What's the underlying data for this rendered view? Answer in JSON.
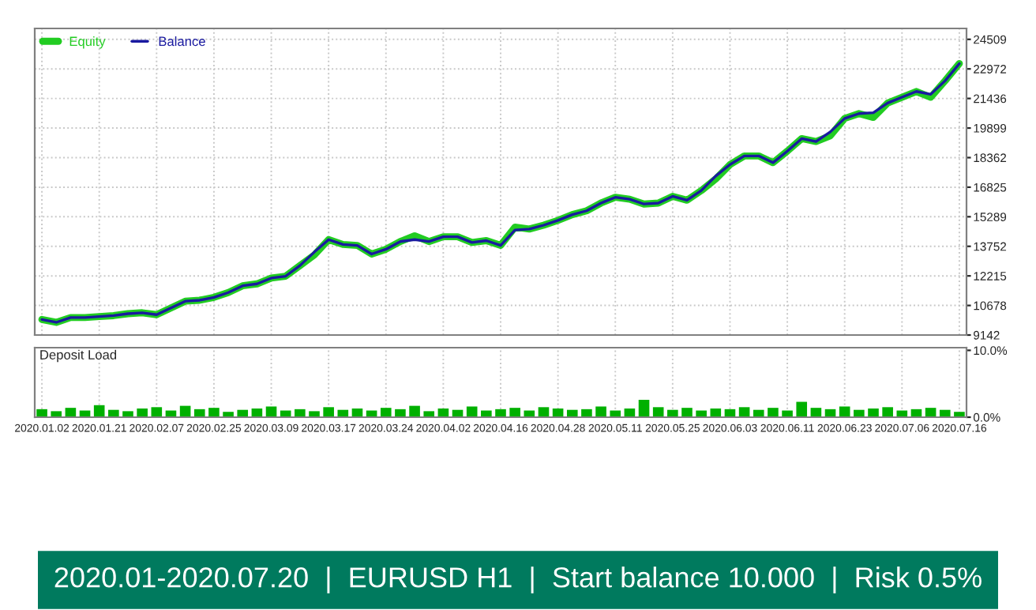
{
  "chart_data": [
    {
      "type": "line",
      "legend": "top left",
      "grid": true,
      "tick_labels": "y",
      "marker": "none",
      "line_style": "solid",
      "categories": [
        "2020.01.02",
        null,
        null,
        null,
        "2020.01.21",
        null,
        null,
        null,
        "2020.02.07",
        null,
        null,
        null,
        "2020.02.25",
        null,
        null,
        null,
        "2020.03.09",
        null,
        null,
        null,
        "2020.03.17",
        null,
        null,
        null,
        "2020.03.24",
        null,
        null,
        null,
        "2020.04.02",
        null,
        null,
        null,
        "2020.04.16",
        null,
        null,
        null,
        "2020.04.28",
        null,
        null,
        null,
        "2020.05.11",
        null,
        null,
        null,
        "2020.05.25",
        null,
        null,
        null,
        "2020.06.03",
        null,
        null,
        null,
        "2020.06.11",
        null,
        null,
        null,
        "2020.06.23",
        null,
        null,
        null,
        "2020.07.06",
        null,
        null,
        null,
        "2020.07.16"
      ],
      "series": [
        {
          "name": "Equity",
          "color": "#22cc22",
          "values": [
            9950,
            9800,
            10050,
            10050,
            10100,
            10150,
            10250,
            10300,
            10200,
            10550,
            10900,
            10950,
            11100,
            11350,
            11700,
            11800,
            12100,
            12200,
            12750,
            13300,
            14100,
            13850,
            13800,
            13350,
            13600,
            14000,
            14300,
            14000,
            14250,
            14250,
            13950,
            14050,
            13800,
            14750,
            14650,
            14850,
            15100,
            15400,
            15600,
            16000,
            16300,
            16200,
            15950,
            16000,
            16350,
            16150,
            16650,
            17250,
            18000,
            18450,
            18450,
            18100,
            18700,
            19350,
            19200,
            19500,
            20400,
            20650,
            20450,
            21200,
            21500,
            21800,
            21500,
            22350,
            23250
          ]
        },
        {
          "name": "Balance",
          "color": "#1a1aa0",
          "values": [
            9950,
            9800,
            10050,
            10050,
            10100,
            10150,
            10250,
            10300,
            10200,
            10550,
            10900,
            10950,
            11100,
            11350,
            11700,
            11800,
            12100,
            12200,
            12750,
            13450,
            14100,
            13850,
            13800,
            13350,
            13600,
            14000,
            14100,
            14000,
            14250,
            14250,
            13950,
            14050,
            13800,
            14600,
            14650,
            14850,
            15100,
            15400,
            15600,
            16000,
            16300,
            16200,
            15950,
            16000,
            16350,
            16150,
            16650,
            17400,
            18000,
            18450,
            18450,
            18100,
            18700,
            19350,
            19200,
            19700,
            20400,
            20650,
            20700,
            21200,
            21500,
            21800,
            21650,
            22350,
            23250
          ]
        }
      ],
      "ylim": [
        9142,
        25075
      ],
      "yticks": [
        9142,
        10678,
        12215,
        13752,
        15289,
        16825,
        18362,
        19899,
        21436,
        22972,
        24509
      ]
    },
    {
      "type": "bar",
      "title": "Deposit Load",
      "grid": "x",
      "color": "#00b000",
      "categories": [
        "2020.01.02",
        null,
        null,
        null,
        "2020.01.21",
        null,
        null,
        null,
        "2020.02.07",
        null,
        null,
        null,
        "2020.02.25",
        null,
        null,
        null,
        "2020.03.09",
        null,
        null,
        null,
        "2020.03.17",
        null,
        null,
        null,
        "2020.03.24",
        null,
        null,
        null,
        "2020.04.02",
        null,
        null,
        null,
        "2020.04.16",
        null,
        null,
        null,
        "2020.04.28",
        null,
        null,
        null,
        "2020.05.11",
        null,
        null,
        null,
        "2020.05.25",
        null,
        null,
        null,
        "2020.06.03",
        null,
        null,
        null,
        "2020.06.11",
        null,
        null,
        null,
        "2020.06.23",
        null,
        null,
        null,
        "2020.07.06",
        null,
        null,
        null,
        "2020.07.16"
      ],
      "values": [
        1.2,
        0.9,
        1.4,
        1.0,
        1.8,
        1.1,
        0.9,
        1.3,
        1.5,
        1.0,
        1.7,
        1.2,
        1.4,
        0.8,
        1.1,
        1.3,
        1.6,
        1.0,
        1.2,
        0.9,
        1.5,
        1.1,
        1.3,
        1.0,
        1.4,
        1.2,
        1.7,
        0.9,
        1.3,
        1.1,
        1.6,
        1.0,
        1.2,
        1.4,
        1.0,
        1.5,
        1.3,
        1.1,
        1.2,
        1.6,
        1.0,
        1.3,
        2.6,
        1.5,
        1.1,
        1.4,
        1.0,
        1.3,
        1.2,
        1.5,
        1.1,
        1.4,
        1.0,
        2.3,
        1.4,
        1.2,
        1.6,
        1.1,
        1.3,
        1.5,
        1.0,
        1.2,
        1.4,
        1.1,
        0.8
      ],
      "ylim": [
        0,
        10.4
      ],
      "yticks": [
        {
          "value": 0,
          "label": "0.0%"
        },
        {
          "value": 10,
          "label": "10.0%"
        }
      ],
      "annotations": [
        "2020.01-2020.07.20  |  EURUSD H1  |  Start balance 10.000  |  Risk 0.5%"
      ]
    }
  ]
}
